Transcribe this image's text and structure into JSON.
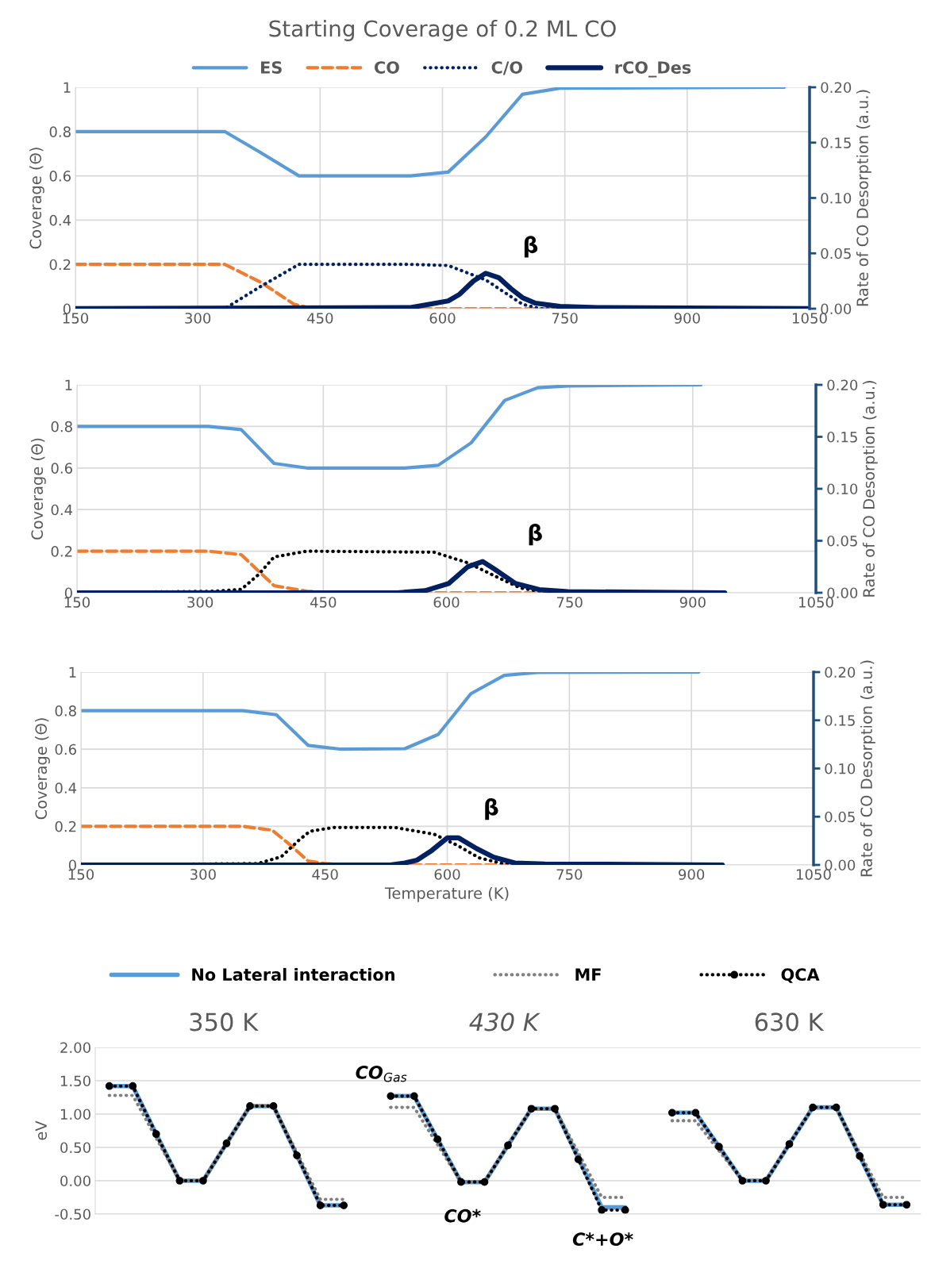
{
  "chart_data": [
    {
      "type": "line",
      "title": "Starting Coverage of 0.2 ML CO",
      "ylabel": "Coverage (Θ)",
      "y2label": "Rate of CO Desorption (a.u.)",
      "legend": "top",
      "grid": true,
      "xlim": [
        150,
        1050
      ],
      "xticks": [
        150,
        300,
        450,
        600,
        750,
        900,
        1050
      ],
      "ylim": [
        0,
        1
      ],
      "yticks": [
        0,
        0.2,
        0.4,
        0.6,
        0.8,
        1
      ],
      "y2lim": [
        0,
        0.2
      ],
      "y2ticks": [
        {
          "value": 0,
          "label": "0.00"
        },
        {
          "value": 0.05,
          "label": "0.05"
        },
        {
          "value": 0.1,
          "label": "0.10"
        },
        {
          "value": 0.15,
          "label": "0.15"
        },
        {
          "value": 0.2,
          "label": "0.20"
        }
      ],
      "annotations": [
        "β"
      ],
      "series": [
        {
          "name": "ES",
          "color": "#5b9bd5",
          "line_style": "solid",
          "x": [
            150,
            333,
            377,
            424,
            561,
            607,
            653,
            698,
            744,
            1019
          ],
          "values": [
            0.8,
            0.8,
            0.705,
            0.6,
            0.6,
            0.617,
            0.776,
            0.968,
            0.996,
            1.0
          ]
        },
        {
          "name": "CO",
          "color": "#ed7d31",
          "line_style": "dashed",
          "x": [
            150,
            333,
            377,
            418,
            440,
            600,
            740
          ],
          "values": [
            0.2,
            0.2,
            0.12,
            0.02,
            0,
            0,
            0
          ]
        },
        {
          "name": "C/O",
          "color": "#002060",
          "line_style": "dotted",
          "x": [
            150,
            333,
            377,
            424,
            561,
            607,
            653,
            698,
            720,
            1019
          ],
          "values": [
            0,
            0,
            0.1,
            0.2,
            0.2,
            0.195,
            0.13,
            0.02,
            0,
            0
          ]
        },
        {
          "name": "rCO_Des",
          "color": "#002060",
          "line_style": "solid",
          "axis": "y2",
          "x": [
            150,
            561,
            607,
            621,
            638,
            653,
            669,
            684,
            698,
            714,
            744,
            790,
            1050
          ],
          "values": [
            0,
            0.001,
            0.007,
            0.013,
            0.025,
            0.032,
            0.028,
            0.018,
            0.01,
            0.005,
            0.002,
            0.001,
            0
          ]
        }
      ]
    },
    {
      "type": "line",
      "ylabel": "Coverage (Θ)",
      "y2label": "Rate of CO Desorption (a.u.)",
      "grid": true,
      "xlim": [
        150,
        1050
      ],
      "xticks": [
        150,
        300,
        450,
        600,
        750,
        900,
        1050
      ],
      "ylim": [
        0,
        1
      ],
      "yticks": [
        0,
        0.2,
        0.4,
        0.6,
        0.8,
        1
      ],
      "y2lim": [
        0,
        0.2
      ],
      "y2ticks": [
        {
          "value": 0,
          "label": "0.00"
        },
        {
          "value": 0.05,
          "label": "0.05"
        },
        {
          "value": 0.1,
          "label": "0.10"
        },
        {
          "value": 0.15,
          "label": "0.15"
        },
        {
          "value": 0.2,
          "label": "0.20"
        }
      ],
      "annotations": [
        "β"
      ],
      "series": [
        {
          "color": "#5b9bd5",
          "line_style": "solid",
          "x": [
            150,
            310,
            350,
            390,
            430,
            549,
            590,
            630,
            671,
            711,
            748,
            910
          ],
          "values": [
            0.8,
            0.8,
            0.785,
            0.622,
            0.6,
            0.6,
            0.613,
            0.721,
            0.925,
            0.986,
            0.995,
            1.0
          ]
        },
        {
          "color": "#ed7d31",
          "line_style": "dashed",
          "x": [
            150,
            310,
            350,
            390,
            430,
            470,
            725
          ],
          "values": [
            0.2,
            0.2,
            0.183,
            0.034,
            0.007,
            0,
            0
          ]
        },
        {
          "color": "#000000",
          "line_style": "dotted",
          "x": [
            150,
            318,
            350,
            371,
            390,
            430,
            585,
            626,
            665,
            690,
            713,
            760
          ],
          "values": [
            0,
            0.007,
            0.016,
            0.087,
            0.172,
            0.2,
            0.195,
            0.144,
            0.069,
            0.023,
            0.007,
            0
          ]
        },
        {
          "color": "#002060",
          "line_style": "solid",
          "axis": "y2",
          "x": [
            150,
            540,
            574,
            603,
            626,
            644,
            658,
            684,
            713,
            748,
            939
          ],
          "values": [
            0,
            0,
            0.002,
            0.009,
            0.025,
            0.03,
            0.023,
            0.009,
            0.003,
            0.001,
            0
          ]
        }
      ]
    },
    {
      "type": "line",
      "xlabel": "Temperature (K)",
      "ylabel": "Coverage (Θ)",
      "y2label": "Rate of CO Desorption (a.u.)",
      "grid": true,
      "xlim": [
        150,
        1050
      ],
      "xticks": [
        150,
        300,
        450,
        600,
        750,
        900,
        1050
      ],
      "ylim": [
        0,
        1
      ],
      "yticks": [
        0,
        0.2,
        0.4,
        0.6,
        0.8,
        1
      ],
      "y2lim": [
        0,
        0.2
      ],
      "y2ticks": [
        {
          "value": 0,
          "label": "0.00"
        },
        {
          "value": 0.05,
          "label": "0.05"
        },
        {
          "value": 0.1,
          "label": "0.10"
        },
        {
          "value": 0.15,
          "label": "0.15"
        },
        {
          "value": 0.2,
          "label": "0.20"
        }
      ],
      "annotations": [
        "β"
      ],
      "series": [
        {
          "color": "#5b9bd5",
          "line_style": "solid",
          "x": [
            150,
            349,
            390,
            429,
            470,
            548,
            589,
            629,
            670,
            711,
            909
          ],
          "values": [
            0.8,
            0.8,
            0.779,
            0.62,
            0.6,
            0.603,
            0.677,
            0.888,
            0.983,
            0.998,
            1.0
          ]
        },
        {
          "color": "#ed7d31",
          "line_style": "dashed",
          "x": [
            150,
            349,
            385,
            408,
            429,
            449,
            480,
            677
          ],
          "values": [
            0.2,
            0.2,
            0.18,
            0.1,
            0.02,
            0.007,
            0,
            0
          ]
        },
        {
          "color": "#000000",
          "line_style": "dotted",
          "x": [
            150,
            367,
            396,
            418,
            431,
            460,
            536,
            584,
            613,
            639,
            668,
            700
          ],
          "values": [
            0,
            0.007,
            0.042,
            0.129,
            0.174,
            0.194,
            0.194,
            0.159,
            0.1,
            0.037,
            0.007,
            0
          ]
        },
        {
          "color": "#002060",
          "line_style": "solid",
          "axis": "y2",
          "x": [
            150,
            530,
            548,
            563,
            581,
            600,
            614,
            636,
            657,
            683,
            720,
            938
          ],
          "values": [
            0,
            0,
            0.002,
            0.005,
            0.015,
            0.028,
            0.028,
            0.017,
            0.008,
            0.002,
            0.001,
            0
          ]
        }
      ]
    },
    {
      "type": "line",
      "ylabel": "eV",
      "legend": "top",
      "grid": "y",
      "tick_labels": "y",
      "categories": [
        null,
        null,
        null,
        null,
        null,
        null,
        null,
        null,
        null,
        null,
        null,
        null,
        null,
        null,
        null,
        null,
        null,
        null,
        null,
        null,
        null,
        null,
        null,
        null,
        null,
        null,
        null,
        null,
        null,
        null,
        null,
        null,
        null,
        null,
        null
      ],
      "ylim": [
        -0.5,
        2.0
      ],
      "yticks": [
        {
          "value": -0.5,
          "label": "-0.50"
        },
        {
          "value": 0,
          "label": "0.00"
        },
        {
          "value": 0.5,
          "label": "0.50"
        },
        {
          "value": 1,
          "label": "1.00"
        },
        {
          "value": 1.5,
          "label": "1.50"
        },
        {
          "value": 2,
          "label": "2.00"
        }
      ],
      "annotations": [
        "350 K",
        "430 K",
        "630 K",
        "CO$_{Gas}$",
        "CO*",
        "C*+O*"
      ],
      "series": [
        {
          "name": "No Lateral interaction",
          "color": "#5b9bd5",
          "line_style": "solid",
          "values": [
            1.42,
            1.42,
            0.7,
            0,
            0,
            0.56,
            1.12,
            1.12,
            0.38,
            -0.37,
            -0.37,
            null,
            1.27,
            1.27,
            0.62,
            -0.02,
            -0.02,
            0.53,
            1.08,
            1.08,
            0.34,
            -0.4,
            -0.4,
            null,
            1.02,
            1.02,
            0.51,
            0,
            0,
            0.55,
            1.1,
            1.1,
            0.37,
            -0.36,
            -0.36
          ]
        },
        {
          "name": "MF",
          "color": "#808080",
          "line_style": "dotted",
          "values": [
            1.28,
            1.28,
            0.64,
            0,
            0,
            0.56,
            1.12,
            1.12,
            0.42,
            -0.28,
            -0.28,
            null,
            1.1,
            1.1,
            0.54,
            -0.02,
            -0.02,
            0.53,
            1.08,
            1.08,
            0.42,
            -0.25,
            -0.25,
            null,
            0.9,
            0.9,
            0.45,
            0,
            0,
            0.55,
            1.1,
            1.1,
            0.42,
            -0.25,
            -0.25
          ]
        },
        {
          "name": "QCA",
          "color": "#000000",
          "line_style": "dotted",
          "marker": "circle",
          "values": [
            1.42,
            1.42,
            0.7,
            0,
            0,
            0.56,
            1.12,
            1.12,
            0.38,
            -0.37,
            -0.37,
            null,
            1.27,
            1.27,
            0.62,
            -0.02,
            -0.02,
            0.53,
            1.08,
            1.08,
            0.32,
            -0.44,
            -0.44,
            null,
            1.02,
            1.02,
            0.51,
            0,
            0,
            0.55,
            1.1,
            1.1,
            0.37,
            -0.36,
            -0.36
          ]
        }
      ]
    }
  ]
}
